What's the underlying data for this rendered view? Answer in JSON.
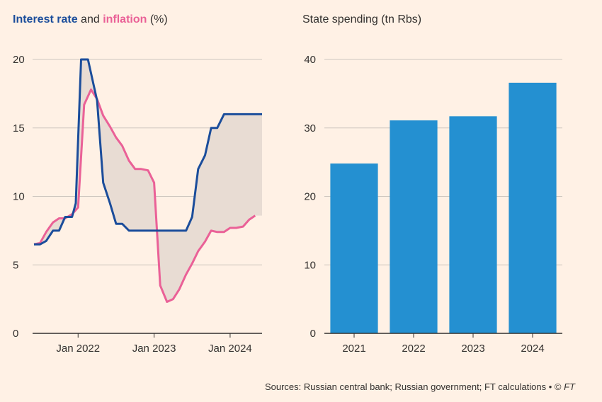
{
  "titles": {
    "left": {
      "rate": "Interest rate",
      "and": " and ",
      "inflation": "inflation",
      "unit": " (%)"
    },
    "right": "State spending (tn Rbs)"
  },
  "source": {
    "text": "Sources: Russian central bank; Russian government; FT calculations • © ",
    "ft": "FT"
  },
  "colors": {
    "background": "#FFF1E5",
    "rate": "#1B4D9B",
    "inflation": "#EA6197",
    "gap_fill": "#E8DCD3",
    "bar": "#2490D1",
    "grid": "#CEC6BE",
    "axis": "#33302E"
  },
  "chart_data": [
    {
      "type": "line",
      "title": "Interest rate and inflation (%)",
      "xlabel": "",
      "ylabel": "",
      "ylim": [
        0,
        20
      ],
      "yticks": [
        0,
        5,
        10,
        15,
        20
      ],
      "xlim": [
        2021.42,
        2024.42
      ],
      "xticks": [
        {
          "value": 2022.0,
          "label": "Jan 2022"
        },
        {
          "value": 2023.0,
          "label": "Jan 2023"
        },
        {
          "value": 2024.0,
          "label": "Jan 2024"
        }
      ],
      "shaded_between_series": true,
      "series": [
        {
          "name": "Interest rate",
          "color_key": "rate",
          "points": [
            [
              2021.42,
              6.5
            ],
            [
              2021.5,
              6.5
            ],
            [
              2021.58,
              6.75
            ],
            [
              2021.67,
              7.5
            ],
            [
              2021.75,
              7.5
            ],
            [
              2021.83,
              8.5
            ],
            [
              2021.92,
              8.5
            ],
            [
              2021.97,
              9.5
            ],
            [
              2022.04,
              20
            ],
            [
              2022.13,
              20
            ],
            [
              2022.25,
              17
            ],
            [
              2022.33,
              11
            ],
            [
              2022.42,
              9.5
            ],
            [
              2022.5,
              8
            ],
            [
              2022.58,
              8
            ],
            [
              2022.67,
              7.5
            ],
            [
              2022.75,
              7.5
            ],
            [
              2023.0,
              7.5
            ],
            [
              2023.25,
              7.5
            ],
            [
              2023.42,
              7.5
            ],
            [
              2023.5,
              8.5
            ],
            [
              2023.58,
              12
            ],
            [
              2023.67,
              13
            ],
            [
              2023.75,
              15
            ],
            [
              2023.83,
              15
            ],
            [
              2023.92,
              16
            ],
            [
              2024.0,
              16
            ],
            [
              2024.42,
              16
            ]
          ]
        },
        {
          "name": "Inflation",
          "color_key": "inflation",
          "points": [
            [
              2021.42,
              6.5
            ],
            [
              2021.5,
              6.6
            ],
            [
              2021.58,
              7.4
            ],
            [
              2021.67,
              8.1
            ],
            [
              2021.75,
              8.4
            ],
            [
              2021.83,
              8.4
            ],
            [
              2021.92,
              8.7
            ],
            [
              2022.0,
              9.2
            ],
            [
              2022.08,
              16.7
            ],
            [
              2022.17,
              17.8
            ],
            [
              2022.25,
              17.1
            ],
            [
              2022.33,
              15.9
            ],
            [
              2022.42,
              15.1
            ],
            [
              2022.5,
              14.3
            ],
            [
              2022.58,
              13.7
            ],
            [
              2022.67,
              12.6
            ],
            [
              2022.75,
              12.0
            ],
            [
              2022.83,
              12.0
            ],
            [
              2022.92,
              11.9
            ],
            [
              2023.0,
              11.0
            ],
            [
              2023.08,
              3.5
            ],
            [
              2023.17,
              2.3
            ],
            [
              2023.25,
              2.5
            ],
            [
              2023.33,
              3.2
            ],
            [
              2023.42,
              4.3
            ],
            [
              2023.5,
              5.1
            ],
            [
              2023.58,
              6.0
            ],
            [
              2023.67,
              6.7
            ],
            [
              2023.75,
              7.5
            ],
            [
              2023.83,
              7.4
            ],
            [
              2023.92,
              7.4
            ],
            [
              2024.0,
              7.7
            ],
            [
              2024.08,
              7.7
            ],
            [
              2024.17,
              7.8
            ],
            [
              2024.25,
              8.3
            ],
            [
              2024.33,
              8.6
            ]
          ]
        }
      ]
    },
    {
      "type": "bar",
      "title": "State spending (tn Rbs)",
      "xlabel": "",
      "ylabel": "",
      "ylim": [
        0,
        40
      ],
      "yticks": [
        0,
        10,
        20,
        30,
        40
      ],
      "categories": [
        "2021",
        "2022",
        "2023",
        "2024"
      ],
      "values": [
        24.8,
        31.1,
        31.7,
        36.6
      ]
    }
  ]
}
